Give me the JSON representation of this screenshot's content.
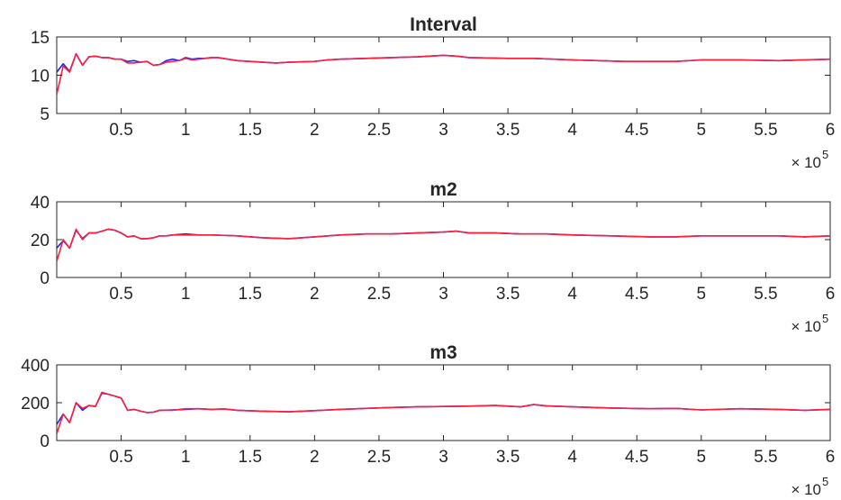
{
  "colors": {
    "series_1": "#1f1fff",
    "series_2": "#ff1f3a",
    "axis": "#262626",
    "background": "#ffffff"
  },
  "chart_data": [
    {
      "type": "line",
      "title": "Interval",
      "xlabel": "",
      "ylabel": "",
      "xlim": [
        0,
        600000
      ],
      "ylim": [
        5,
        15
      ],
      "xticks": [
        50000,
        100000,
        150000,
        200000,
        250000,
        300000,
        350000,
        400000,
        450000,
        500000,
        550000,
        600000
      ],
      "xtick_labels": [
        "0.5",
        "1",
        "1.5",
        "2",
        "2.5",
        "3",
        "3.5",
        "4",
        "4.5",
        "5",
        "5.5",
        "6"
      ],
      "yticks": [
        5,
        10,
        15
      ],
      "ytick_labels": [
        "5",
        "10",
        "15"
      ],
      "x_exponent": {
        "base": "× 10",
        "power": "5"
      },
      "grid": false,
      "series": [
        {
          "color": "#1f1fff",
          "x": [
            0,
            5000,
            10000,
            15000,
            20000,
            25000,
            30000,
            35000,
            40000,
            45000,
            50000,
            55000,
            60000,
            65000,
            70000,
            75000,
            80000,
            85000,
            90000,
            95000,
            100000,
            105000,
            110000,
            115000,
            120000,
            125000,
            140000,
            150000,
            160000,
            170000,
            180000,
            200000,
            210000,
            220000,
            240000,
            260000,
            280000,
            300000,
            310000,
            320000,
            350000,
            370000,
            400000,
            420000,
            440000,
            460000,
            480000,
            500000,
            530000,
            560000,
            580000,
            600000
          ],
          "y": [
            10.4,
            11.5,
            10.5,
            12.8,
            11.3,
            12.4,
            12.5,
            12.3,
            12.3,
            12.1,
            12.1,
            11.8,
            11.9,
            11.7,
            11.8,
            11.3,
            11.4,
            11.9,
            12.1,
            11.9,
            12.3,
            12.1,
            12.2,
            12.2,
            12.3,
            12.3,
            11.9,
            11.8,
            11.7,
            11.6,
            11.7,
            11.8,
            12.0,
            12.1,
            12.2,
            12.3,
            12.4,
            12.6,
            12.5,
            12.3,
            12.2,
            12.2,
            12.0,
            11.9,
            11.8,
            11.8,
            11.8,
            12.0,
            12.0,
            11.9,
            12.0,
            12.1
          ]
        },
        {
          "color": "#ff1f3a",
          "x": [
            0,
            5000,
            10000,
            15000,
            20000,
            25000,
            30000,
            35000,
            40000,
            45000,
            50000,
            55000,
            60000,
            65000,
            70000,
            75000,
            80000,
            85000,
            90000,
            95000,
            100000,
            105000,
            110000,
            115000,
            120000,
            125000,
            140000,
            150000,
            160000,
            170000,
            180000,
            200000,
            210000,
            220000,
            240000,
            260000,
            280000,
            300000,
            310000,
            320000,
            350000,
            370000,
            400000,
            420000,
            440000,
            460000,
            480000,
            500000,
            530000,
            560000,
            580000,
            600000
          ],
          "y": [
            7.5,
            11.2,
            10.4,
            12.8,
            11.3,
            12.4,
            12.5,
            12.3,
            12.3,
            12.1,
            12.1,
            11.6,
            11.6,
            11.7,
            11.8,
            11.3,
            11.4,
            11.7,
            11.8,
            11.9,
            12.2,
            12.0,
            12.1,
            12.2,
            12.3,
            12.3,
            11.9,
            11.8,
            11.7,
            11.6,
            11.7,
            11.8,
            12.0,
            12.1,
            12.2,
            12.3,
            12.4,
            12.6,
            12.5,
            12.3,
            12.2,
            12.2,
            12.0,
            11.9,
            11.8,
            11.8,
            11.8,
            12.0,
            12.0,
            11.9,
            12.0,
            12.1
          ]
        }
      ]
    },
    {
      "type": "line",
      "title": "m2",
      "xlabel": "",
      "ylabel": "",
      "xlim": [
        0,
        600000
      ],
      "ylim": [
        0,
        40
      ],
      "xticks": [
        50000,
        100000,
        150000,
        200000,
        250000,
        300000,
        350000,
        400000,
        450000,
        500000,
        550000,
        600000
      ],
      "xtick_labels": [
        "0.5",
        "1",
        "1.5",
        "2",
        "2.5",
        "3",
        "3.5",
        "4",
        "4.5",
        "5",
        "5.5",
        "6"
      ],
      "yticks": [
        0,
        20,
        40
      ],
      "ytick_labels": [
        "0",
        "20",
        "40"
      ],
      "x_exponent": {
        "base": "× 10",
        "power": "5"
      },
      "grid": false,
      "series": [
        {
          "color": "#1f1fff",
          "x": [
            0,
            5000,
            10000,
            15000,
            20000,
            25000,
            30000,
            35000,
            40000,
            45000,
            50000,
            55000,
            60000,
            65000,
            70000,
            75000,
            80000,
            85000,
            90000,
            100000,
            110000,
            120000,
            140000,
            160000,
            180000,
            200000,
            220000,
            240000,
            260000,
            280000,
            300000,
            310000,
            320000,
            340000,
            360000,
            380000,
            400000,
            430000,
            460000,
            480000,
            500000,
            530000,
            560000,
            580000,
            600000
          ],
          "y": [
            15.5,
            19.5,
            15.5,
            25.0,
            20.5,
            23.5,
            23.5,
            24.5,
            25.5,
            25.0,
            23.5,
            21.5,
            22.0,
            20.5,
            20.5,
            21.0,
            22.0,
            22.0,
            22.5,
            23.0,
            22.5,
            22.5,
            22.0,
            21.0,
            20.5,
            21.5,
            22.5,
            23.0,
            23.0,
            23.5,
            24.0,
            24.5,
            23.5,
            23.5,
            23.0,
            23.0,
            22.5,
            22.0,
            21.5,
            21.5,
            22.0,
            22.0,
            22.0,
            21.5,
            22.0
          ]
        },
        {
          "color": "#ff1f3a",
          "x": [
            0,
            5000,
            10000,
            15000,
            20000,
            25000,
            30000,
            35000,
            40000,
            45000,
            50000,
            55000,
            60000,
            65000,
            70000,
            75000,
            80000,
            85000,
            90000,
            100000,
            110000,
            120000,
            140000,
            160000,
            180000,
            200000,
            220000,
            240000,
            260000,
            280000,
            300000,
            310000,
            320000,
            340000,
            360000,
            380000,
            400000,
            430000,
            460000,
            480000,
            500000,
            530000,
            560000,
            580000,
            600000
          ],
          "y": [
            8.5,
            20.0,
            15.5,
            25.5,
            20.0,
            23.5,
            23.5,
            24.5,
            25.5,
            25.0,
            23.5,
            21.5,
            22.0,
            20.5,
            20.5,
            21.0,
            22.0,
            22.0,
            22.5,
            22.5,
            22.5,
            22.5,
            22.0,
            21.0,
            20.5,
            21.5,
            22.5,
            23.0,
            23.0,
            23.5,
            24.0,
            24.5,
            23.5,
            23.5,
            23.0,
            23.0,
            22.5,
            22.0,
            21.5,
            21.5,
            22.0,
            22.0,
            22.0,
            21.5,
            22.0
          ]
        }
      ]
    },
    {
      "type": "line",
      "title": "m3",
      "xlabel": "",
      "ylabel": "",
      "xlim": [
        0,
        600000
      ],
      "ylim": [
        0,
        400
      ],
      "xticks": [
        50000,
        100000,
        150000,
        200000,
        250000,
        300000,
        350000,
        400000,
        450000,
        500000,
        550000,
        600000
      ],
      "xtick_labels": [
        "0.5",
        "1",
        "1.5",
        "2",
        "2.5",
        "3",
        "3.5",
        "4",
        "4.5",
        "5",
        "5.5",
        "6"
      ],
      "yticks": [
        0,
        200,
        400
      ],
      "ytick_labels": [
        "0",
        "200",
        "400"
      ],
      "x_exponent": {
        "base": "× 10",
        "power": "5"
      },
      "grid": false,
      "series": [
        {
          "color": "#1f1fff",
          "x": [
            0,
            5000,
            10000,
            15000,
            20000,
            25000,
            30000,
            35000,
            40000,
            45000,
            50000,
            55000,
            60000,
            65000,
            70000,
            75000,
            80000,
            90000,
            100000,
            110000,
            120000,
            130000,
            140000,
            160000,
            180000,
            200000,
            220000,
            240000,
            260000,
            280000,
            300000,
            320000,
            340000,
            360000,
            370000,
            380000,
            400000,
            430000,
            460000,
            480000,
            500000,
            530000,
            560000,
            580000,
            600000
          ],
          "y": [
            85,
            140,
            95,
            200,
            160,
            185,
            180,
            250,
            245,
            235,
            225,
            160,
            165,
            155,
            148,
            150,
            160,
            162,
            165,
            168,
            165,
            167,
            160,
            155,
            152,
            158,
            165,
            170,
            175,
            178,
            180,
            182,
            185,
            178,
            190,
            183,
            178,
            172,
            168,
            170,
            162,
            168,
            165,
            160,
            165
          ]
        },
        {
          "color": "#ff1f3a",
          "x": [
            0,
            5000,
            10000,
            15000,
            20000,
            25000,
            30000,
            35000,
            40000,
            45000,
            50000,
            55000,
            60000,
            65000,
            70000,
            75000,
            80000,
            90000,
            100000,
            110000,
            120000,
            130000,
            140000,
            160000,
            180000,
            200000,
            220000,
            240000,
            260000,
            280000,
            300000,
            320000,
            340000,
            360000,
            370000,
            380000,
            400000,
            430000,
            460000,
            480000,
            500000,
            530000,
            560000,
            580000,
            600000
          ],
          "y": [
            35,
            140,
            95,
            200,
            170,
            185,
            180,
            255,
            245,
            235,
            225,
            160,
            165,
            155,
            148,
            150,
            160,
            160,
            168,
            168,
            165,
            167,
            160,
            155,
            152,
            158,
            165,
            170,
            175,
            178,
            180,
            182,
            185,
            178,
            190,
            183,
            178,
            172,
            168,
            170,
            162,
            168,
            165,
            160,
            165
          ]
        }
      ]
    }
  ]
}
